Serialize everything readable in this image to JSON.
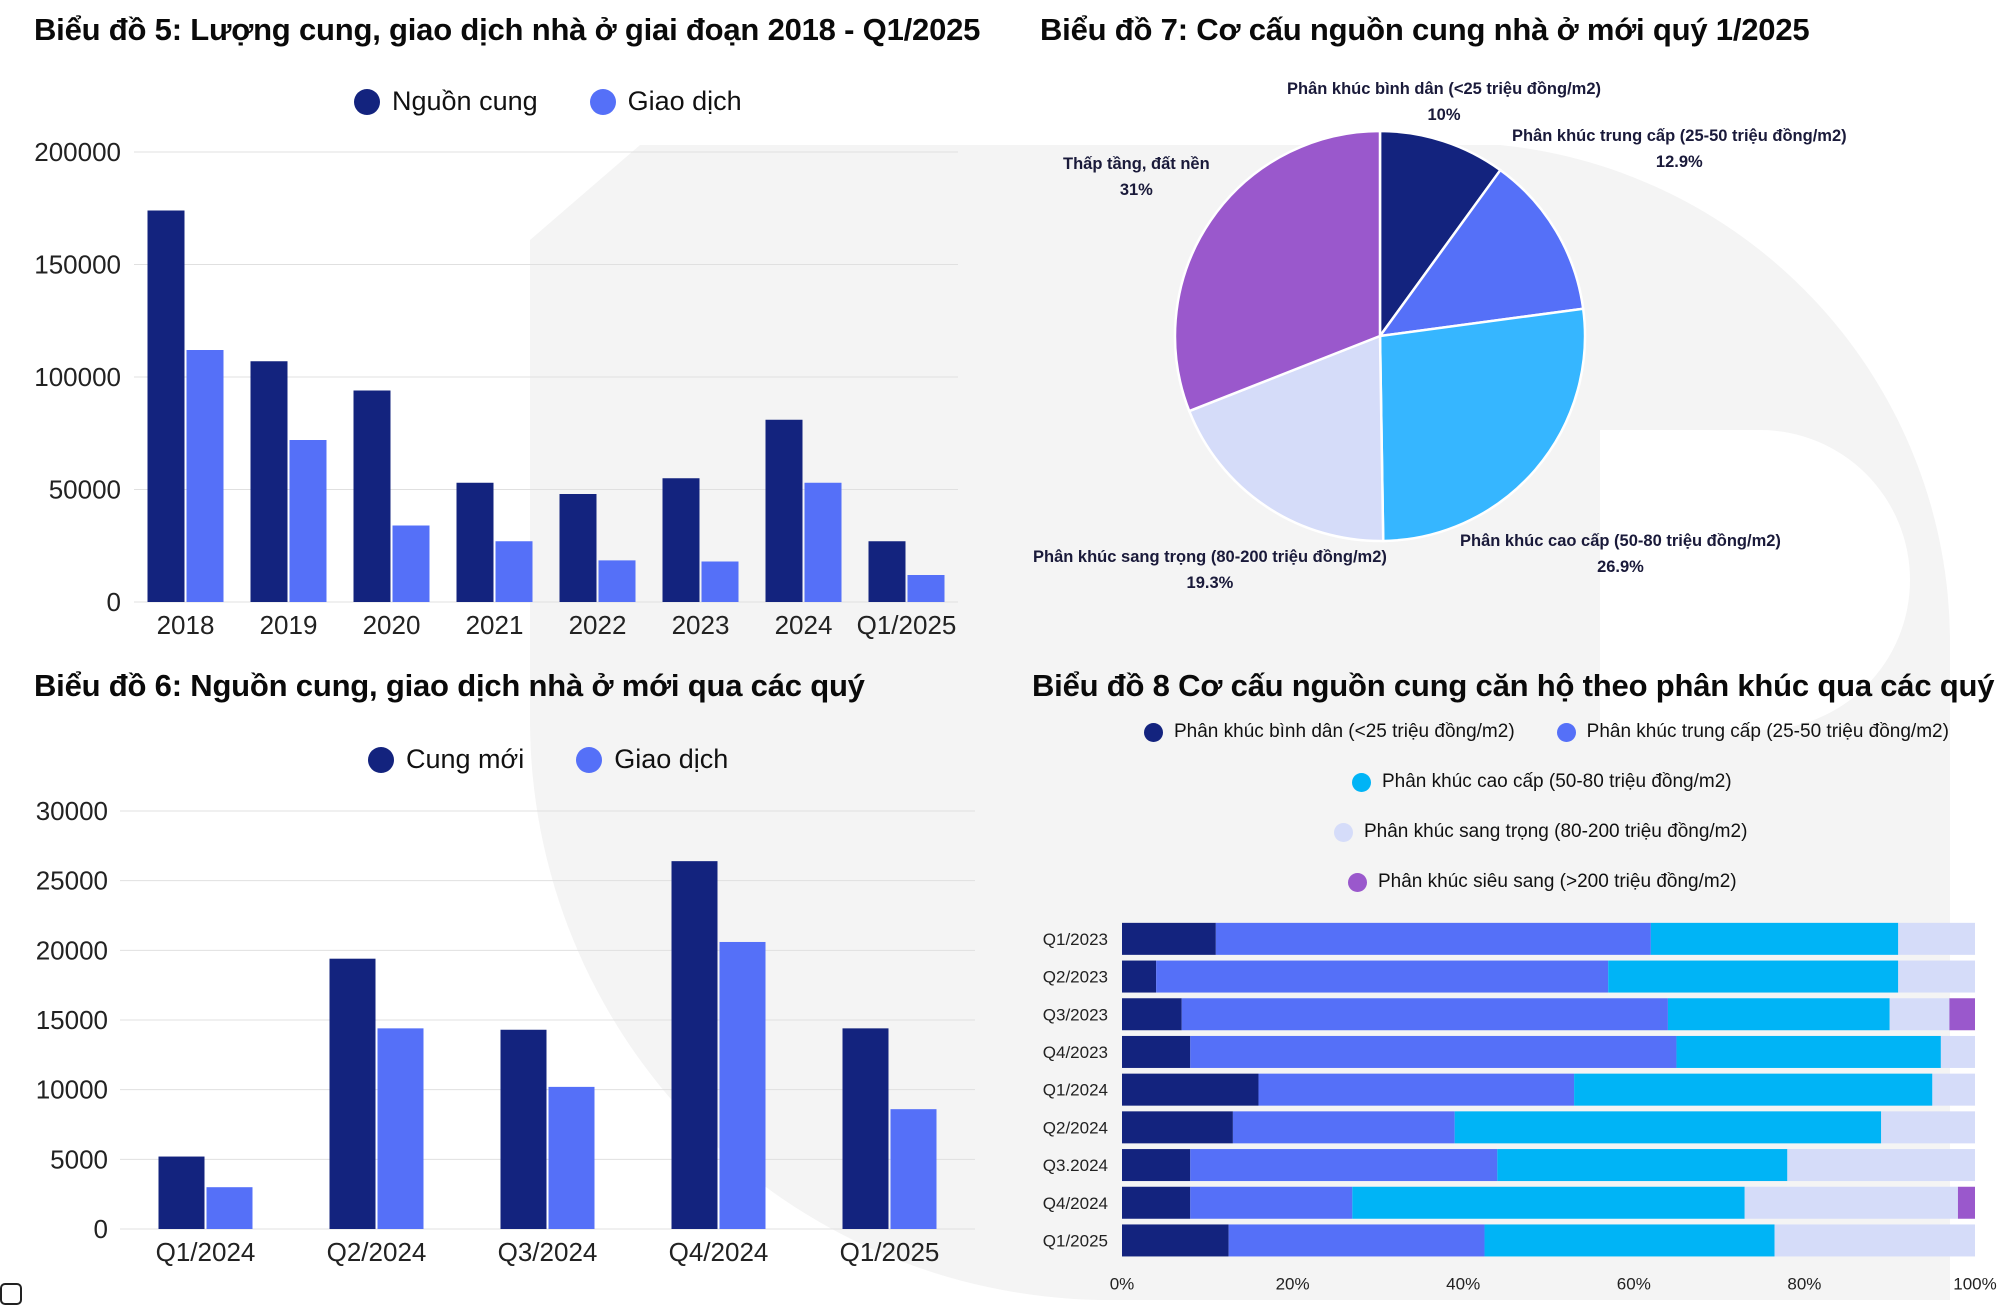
{
  "colors": {
    "dark_navy": "#13237e",
    "medium_blue": "#5570f8",
    "sky_blue": "#36b6ff",
    "cyan": "#00b4f6",
    "pale_lavender": "#d5dcf9",
    "purple": "#9a58cc"
  },
  "chart_data": [
    {
      "type": "bar",
      "title": "Biểu đồ 5: Lượng cung, giao dịch nhà ở giai đoạn 2018 - Q1/2025",
      "categories": [
        "2018",
        "2019",
        "2020",
        "2021",
        "2022",
        "2023",
        "2024",
        "Q1/2025"
      ],
      "series": [
        {
          "name": "Nguồn cung",
          "color": "#13237e",
          "values": [
            174000,
            107000,
            94000,
            53000,
            48000,
            55000,
            81000,
            27000
          ]
        },
        {
          "name": "Giao dịch",
          "color": "#5570f8",
          "values": [
            112000,
            72000,
            34000,
            27000,
            18500,
            18000,
            53000,
            12000
          ]
        }
      ],
      "yticks": [
        "0",
        "50000",
        "100000",
        "150000",
        "200000"
      ],
      "ylim": [
        0,
        200000
      ],
      "grid": true,
      "legend_position": "top"
    },
    {
      "type": "bar",
      "title": "Biểu đồ 6: Nguồn cung, giao dịch nhà ở mới qua các quý",
      "categories": [
        "Q1/2024",
        "Q2/2024",
        "Q3/2024",
        "Q4/2024",
        "Q1/2025"
      ],
      "series": [
        {
          "name": "Cung mới",
          "color": "#13237e",
          "values": [
            5200,
            19400,
            14300,
            26400,
            14400
          ]
        },
        {
          "name": "Giao dịch",
          "color": "#5570f8",
          "values": [
            3000,
            14400,
            10200,
            20600,
            8600
          ]
        }
      ],
      "yticks": [
        "0",
        "5000",
        "10000",
        "15000",
        "20000",
        "25000",
        "30000"
      ],
      "ylim": [
        0,
        30000
      ],
      "grid": true,
      "legend_position": "top"
    },
    {
      "type": "pie",
      "title": "Biểu đồ 7: Cơ cấu nguồn cung nhà ở mới quý 1/2025",
      "slices": [
        {
          "label": "Phân khúc bình dân (<25 triệu đồng/m2)",
          "value": 10,
          "display": "10%",
          "color": "#13237e"
        },
        {
          "label": "Phân khúc trung cấp (25-50 triệu đồng/m2)",
          "value": 12.9,
          "display": "12.9%",
          "color": "#5570f8"
        },
        {
          "label": "Phân khúc cao cấp (50-80 triệu đồng/m2)",
          "value": 26.9,
          "display": "26.9%",
          "color": "#36b6ff"
        },
        {
          "label": "Phân khúc sang trọng (80-200 triệu đồng/m2)",
          "value": 19.3,
          "display": "19.3%",
          "color": "#d5dcf9"
        },
        {
          "label": "Thấp tầng, đất nền",
          "value": 31,
          "display": "31%",
          "color": "#9a58cc"
        }
      ]
    },
    {
      "type": "bar",
      "orientation": "horizontal-stacked-100",
      "title": "Biểu đồ 8 Cơ cấu nguồn cung căn hộ theo phân khúc qua các quý",
      "categories": [
        "Q1/2023",
        "Q2/2023",
        "Q3/2023",
        "Q4/2023",
        "Q1/2024",
        "Q2/2024",
        "Q3.2024",
        "Q4/2024",
        "Q1/2025"
      ],
      "series": [
        {
          "name": "Phân khúc bình dân (<25 triệu đồng/m2)",
          "color": "#13237e",
          "values": [
            11,
            4,
            7,
            8,
            16,
            13,
            8,
            8,
            12.5
          ]
        },
        {
          "name": "Phân khúc trung cấp (25-50 triệu đồng/m2)",
          "color": "#5570f8",
          "values": [
            51,
            53,
            57,
            57,
            37,
            26,
            36,
            19,
            30
          ]
        },
        {
          "name": "Phân khúc cao cấp (50-80 triệu đồng/m2)",
          "color": "#00b4f6",
          "values": [
            29,
            34,
            26,
            31,
            42,
            50,
            34,
            46,
            34
          ]
        },
        {
          "name": "Phân khúc sang trọng (80-200 triệu đồng/m2)",
          "color": "#d5dcf9",
          "values": [
            9,
            9,
            7,
            4,
            5,
            11,
            22,
            25,
            23.5
          ]
        },
        {
          "name": "Phân khúc siêu sang (>200 triệu đồng/m2)",
          "color": "#9a58cc",
          "values": [
            0,
            0,
            3,
            0,
            0,
            0,
            0,
            2,
            0
          ]
        }
      ],
      "xticks": [
        "0%",
        "20%",
        "40%",
        "60%",
        "80%",
        "100%"
      ],
      "xlim": [
        0,
        100
      ],
      "legend_position": "top"
    }
  ]
}
